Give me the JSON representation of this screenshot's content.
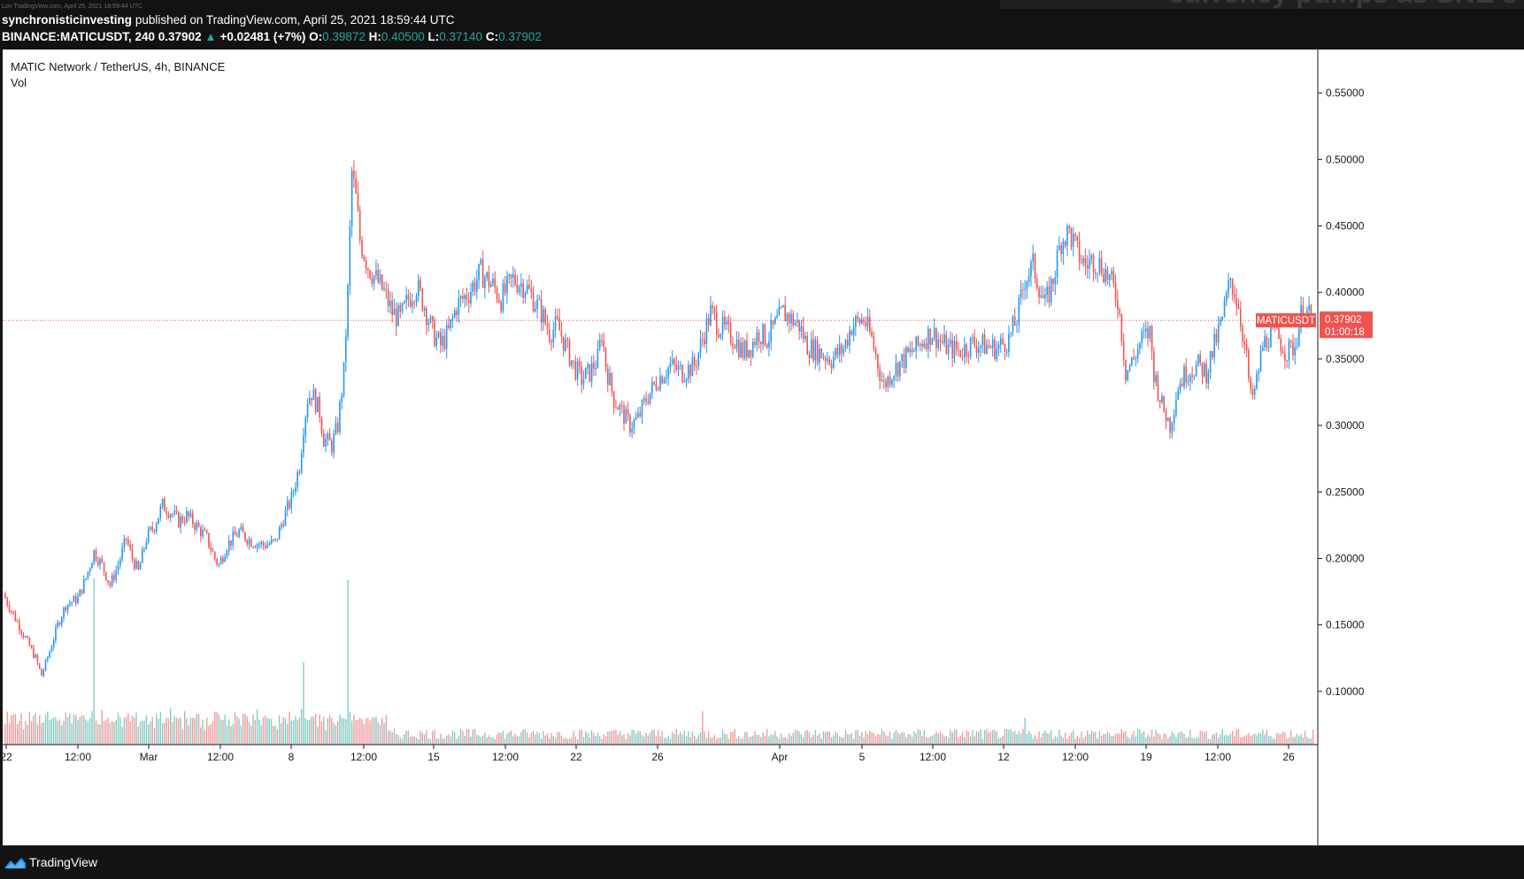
{
  "header": {
    "watermark_line": "Lon TradingView.com, April 25, 2021 18:59:44 UTC",
    "author": "synchronisticinvesting",
    "published": "published on TradingView.com, April 25, 2021 18:59:44 UTC",
    "symbol_line": "BINANCE:MATICUSDT, 240",
    "last_price": "0.37902",
    "change_arrow": "▲",
    "change": "+0.02481 (+7%)",
    "o_label": "O:",
    "o_value": "0.39872",
    "h_label": "H:",
    "h_value": "0.40500",
    "l_label": "L:",
    "l_value": "0.37140",
    "c_label": "C:",
    "c_value": "0.37902",
    "headline_fragment": "currency pumps as SNE s"
  },
  "legend": {
    "title": "MATIC Network / TetherUS, 4h, BINANCE",
    "volume_label": "Vol"
  },
  "price_tag": {
    "symbol": "MATICUSDT",
    "price": "0.37902",
    "countdown": "01:00:18"
  },
  "footer": {
    "brand": "TradingView"
  },
  "colors": {
    "up": "#2196f3",
    "down": "#ef5350",
    "vol_up": "#80cbc4",
    "vol_down": "#ef9a9a",
    "background": "#ffffff",
    "frame": "#141414"
  },
  "chart_data": {
    "type": "candlestick",
    "title": "MATIC Network / TetherUS, 4h, BINANCE",
    "ylim": [
      0.06,
      0.58
    ],
    "y_ticks": [
      "0.55000",
      "0.50000",
      "0.45000",
      "0.40000",
      "0.35000",
      "0.30000",
      "0.25000",
      "0.20000",
      "0.15000",
      "0.10000"
    ],
    "x_tick_labels": [
      "22",
      "12:00",
      "Mar",
      "12:00",
      "8",
      "12:00",
      "15",
      "12:00",
      "22",
      "26",
      "Apr",
      "5",
      "12:00",
      "12",
      "12:00",
      "19",
      "12:00",
      "26"
    ],
    "current_price": 0.37902,
    "close_path_points": [
      [
        0,
        0.17
      ],
      [
        5,
        0.155
      ],
      [
        10,
        0.14
      ],
      [
        15,
        0.125
      ],
      [
        18,
        0.112
      ],
      [
        22,
        0.13
      ],
      [
        26,
        0.15
      ],
      [
        30,
        0.165
      ],
      [
        36,
        0.17
      ],
      [
        40,
        0.185
      ],
      [
        44,
        0.205
      ],
      [
        48,
        0.195
      ],
      [
        52,
        0.18
      ],
      [
        56,
        0.195
      ],
      [
        60,
        0.215
      ],
      [
        63,
        0.2
      ],
      [
        66,
        0.19
      ],
      [
        70,
        0.215
      ],
      [
        74,
        0.225
      ],
      [
        78,
        0.24
      ],
      [
        82,
        0.235
      ],
      [
        86,
        0.228
      ],
      [
        90,
        0.232
      ],
      [
        94,
        0.226
      ],
      [
        100,
        0.215
      ],
      [
        104,
        0.2
      ],
      [
        106,
        0.195
      ],
      [
        110,
        0.21
      ],
      [
        116,
        0.22
      ],
      [
        122,
        0.213
      ],
      [
        128,
        0.21
      ],
      [
        134,
        0.212
      ],
      [
        138,
        0.23
      ],
      [
        142,
        0.245
      ],
      [
        146,
        0.27
      ],
      [
        148,
        0.3
      ],
      [
        150,
        0.32
      ],
      [
        152,
        0.325
      ],
      [
        156,
        0.31
      ],
      [
        158,
        0.29
      ],
      [
        162,
        0.285
      ],
      [
        165,
        0.3
      ],
      [
        168,
        0.34
      ],
      [
        170,
        0.4
      ],
      [
        172,
        0.49
      ],
      [
        174,
        0.47
      ],
      [
        176,
        0.44
      ],
      [
        180,
        0.42
      ],
      [
        184,
        0.41
      ],
      [
        188,
        0.4
      ],
      [
        192,
        0.385
      ],
      [
        196,
        0.38
      ],
      [
        200,
        0.395
      ],
      [
        204,
        0.405
      ],
      [
        208,
        0.39
      ],
      [
        212,
        0.37
      ],
      [
        216,
        0.36
      ],
      [
        220,
        0.37
      ],
      [
        224,
        0.39
      ],
      [
        230,
        0.4
      ],
      [
        236,
        0.415
      ],
      [
        242,
        0.405
      ],
      [
        246,
        0.395
      ],
      [
        252,
        0.41
      ],
      [
        258,
        0.405
      ],
      [
        262,
        0.395
      ],
      [
        266,
        0.385
      ],
      [
        270,
        0.37
      ],
      [
        274,
        0.375
      ],
      [
        278,
        0.36
      ],
      [
        282,
        0.345
      ],
      [
        286,
        0.335
      ],
      [
        290,
        0.34
      ],
      [
        294,
        0.35
      ],
      [
        296,
        0.37
      ],
      [
        298,
        0.345
      ],
      [
        302,
        0.32
      ],
      [
        306,
        0.31
      ],
      [
        310,
        0.3
      ],
      [
        314,
        0.305
      ],
      [
        318,
        0.32
      ],
      [
        324,
        0.335
      ],
      [
        330,
        0.345
      ],
      [
        336,
        0.34
      ],
      [
        342,
        0.345
      ],
      [
        346,
        0.365
      ],
      [
        350,
        0.385
      ],
      [
        354,
        0.375
      ],
      [
        358,
        0.37
      ],
      [
        362,
        0.365
      ],
      [
        366,
        0.355
      ],
      [
        370,
        0.36
      ],
      [
        374,
        0.37
      ],
      [
        378,
        0.365
      ],
      [
        382,
        0.375
      ],
      [
        386,
        0.385
      ],
      [
        390,
        0.38
      ],
      [
        394,
        0.375
      ],
      [
        398,
        0.36
      ],
      [
        404,
        0.355
      ],
      [
        410,
        0.35
      ],
      [
        416,
        0.358
      ],
      [
        420,
        0.375
      ],
      [
        426,
        0.38
      ],
      [
        430,
        0.365
      ],
      [
        434,
        0.34
      ],
      [
        436,
        0.33
      ],
      [
        440,
        0.34
      ],
      [
        446,
        0.35
      ],
      [
        452,
        0.358
      ],
      [
        456,
        0.365
      ],
      [
        460,
        0.37
      ],
      [
        464,
        0.363
      ],
      [
        468,
        0.358
      ],
      [
        474,
        0.356
      ],
      [
        480,
        0.362
      ],
      [
        486,
        0.36
      ],
      [
        492,
        0.358
      ],
      [
        498,
        0.365
      ],
      [
        502,
        0.38
      ],
      [
        506,
        0.41
      ],
      [
        510,
        0.42
      ],
      [
        514,
        0.4
      ],
      [
        516,
        0.39
      ],
      [
        520,
        0.41
      ],
      [
        524,
        0.44
      ],
      [
        528,
        0.445
      ],
      [
        532,
        0.43
      ],
      [
        536,
        0.42
      ],
      [
        540,
        0.425
      ],
      [
        544,
        0.42
      ],
      [
        548,
        0.41
      ],
      [
        552,
        0.395
      ],
      [
        554,
        0.37
      ],
      [
        556,
        0.34
      ],
      [
        560,
        0.35
      ],
      [
        564,
        0.365
      ],
      [
        568,
        0.37
      ],
      [
        570,
        0.34
      ],
      [
        574,
        0.315
      ],
      [
        578,
        0.3
      ],
      [
        582,
        0.33
      ],
      [
        586,
        0.34
      ],
      [
        592,
        0.345
      ],
      [
        596,
        0.34
      ],
      [
        600,
        0.36
      ],
      [
        604,
        0.38
      ],
      [
        608,
        0.41
      ],
      [
        612,
        0.39
      ],
      [
        616,
        0.35
      ],
      [
        618,
        0.32
      ],
      [
        620,
        0.325
      ],
      [
        624,
        0.36
      ],
      [
        628,
        0.37
      ],
      [
        632,
        0.365
      ],
      [
        636,
        0.355
      ],
      [
        640,
        0.36
      ],
      [
        644,
        0.39
      ],
      [
        648,
        0.37902
      ]
    ],
    "volume_spikes": {
      "44": 0.185,
      "170": 0.184,
      "148": 0.122,
      "346": 0.085,
      "506": 0.08
    },
    "n_candles": 650
  }
}
